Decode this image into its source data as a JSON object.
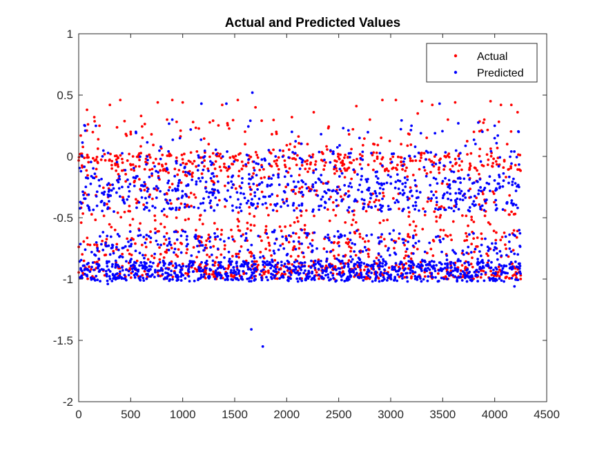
{
  "chart_data": {
    "type": "scatter",
    "title": "Actual and Predicted Values",
    "xlabel": "",
    "ylabel": "",
    "xlim": [
      0,
      4500
    ],
    "ylim": [
      -2,
      1
    ],
    "x_ticks": [
      0,
      500,
      1000,
      1500,
      2000,
      2500,
      3000,
      3500,
      4000,
      4500
    ],
    "x_tick_labels": [
      "0",
      "500",
      "1000",
      "1500",
      "2000",
      "2500",
      "3000",
      "3500",
      "4000",
      "4500"
    ],
    "y_ticks": [
      1,
      0.5,
      0,
      -0.5,
      -1,
      -1.5,
      -2
    ],
    "y_tick_labels": [
      "1",
      "0.5",
      "0",
      "-0.5",
      "-1",
      "-1.5",
      "-2"
    ],
    "grid": false,
    "legend_position": "top-right",
    "series": [
      {
        "name": "Actual",
        "color": "#ff0000",
        "points": [
          [
            20,
            0.17
          ],
          [
            40,
            -0.95
          ],
          [
            80,
            0.38
          ],
          [
            100,
            -0.9
          ],
          [
            150,
            0.32
          ],
          [
            200,
            0.25
          ],
          [
            250,
            -0.97
          ],
          [
            300,
            0.42
          ],
          [
            350,
            -0.6
          ],
          [
            400,
            0.46
          ],
          [
            450,
            -0.98
          ],
          [
            500,
            0.2
          ],
          [
            550,
            -0.35
          ],
          [
            600,
            0.33
          ],
          [
            650,
            -0.96
          ],
          [
            700,
            0.18
          ],
          [
            760,
            0.44
          ],
          [
            800,
            -0.97
          ],
          [
            850,
            0.3
          ],
          [
            900,
            0.46
          ],
          [
            940,
            -0.5
          ],
          [
            1000,
            0.44
          ],
          [
            1050,
            -0.97
          ],
          [
            1100,
            0.28
          ],
          [
            1180,
            -0.7
          ],
          [
            1250,
            0.1
          ],
          [
            1300,
            -0.96
          ],
          [
            1380,
            0.42
          ],
          [
            1430,
            0.27
          ],
          [
            1500,
            -0.97
          ],
          [
            1530,
            0.46
          ],
          [
            1600,
            0.1
          ],
          [
            1700,
            0.4
          ],
          [
            1800,
            -0.6
          ],
          [
            1900,
            0.2
          ],
          [
            1950,
            -0.97
          ],
          [
            2050,
            0.32
          ],
          [
            2100,
            -0.5
          ],
          [
            2200,
            0.1
          ],
          [
            2260,
            0.36
          ],
          [
            2300,
            -0.97
          ],
          [
            2400,
            0.23
          ],
          [
            2500,
            -0.7
          ],
          [
            2600,
            0.18
          ],
          [
            2670,
            0.41
          ],
          [
            2700,
            -0.96
          ],
          [
            2800,
            0.3
          ],
          [
            2920,
            0.46
          ],
          [
            3000,
            -0.97
          ],
          [
            3050,
            0.46
          ],
          [
            3100,
            0.1
          ],
          [
            3200,
            -0.98
          ],
          [
            3260,
            0.35
          ],
          [
            3300,
            0.45
          ],
          [
            3400,
            0.42
          ],
          [
            3480,
            -0.6
          ],
          [
            3550,
            0.3
          ],
          [
            3620,
            0.44
          ],
          [
            3700,
            -0.97
          ],
          [
            3800,
            0.2
          ],
          [
            3900,
            0.3
          ],
          [
            3960,
            0.45
          ],
          [
            4000,
            -0.97
          ],
          [
            4060,
            0.42
          ],
          [
            4120,
            0.1
          ],
          [
            4160,
            0.42
          ],
          [
            4220,
            0.36
          ],
          [
            4250,
            -0.97
          ]
        ],
        "bands": [
          {
            "x": [
              0,
              4250
            ],
            "y": [
              -1.0,
              -0.88
            ],
            "count": 340
          },
          {
            "x": [
              0,
              4250
            ],
            "y": [
              -0.88,
              -0.6
            ],
            "count": 300
          },
          {
            "x": [
              0,
              4250
            ],
            "y": [
              -0.6,
              -0.1
            ],
            "count": 320
          },
          {
            "x": [
              0,
              4250
            ],
            "y": [
              -0.12,
              0.03
            ],
            "count": 330
          },
          {
            "x": [
              0,
              4250
            ],
            "y": [
              0.03,
              0.3
            ],
            "count": 80
          }
        ]
      },
      {
        "name": "Predicted",
        "color": "#0000ff",
        "points": [
          [
            1670,
            0.52
          ],
          [
            1660,
            -1.41
          ],
          [
            1770,
            -1.55
          ],
          [
            4190,
            -1.06
          ],
          [
            280,
            -1.04
          ],
          [
            1180,
            0.43
          ],
          [
            1420,
            0.43
          ],
          [
            3470,
            0.43
          ],
          [
            3650,
            0.27
          ],
          [
            60,
            0.25
          ],
          [
            550,
            0.2
          ],
          [
            900,
            0.3
          ],
          [
            2050,
            0.2
          ],
          [
            2700,
            0.15
          ],
          [
            3200,
            0.25
          ],
          [
            4000,
            0.25
          ],
          [
            4230,
            0.2
          ]
        ],
        "bands": [
          {
            "x": [
              0,
              4250
            ],
            "y": [
              -1.02,
              -0.85
            ],
            "count": 900
          },
          {
            "x": [
              0,
              4250
            ],
            "y": [
              -0.85,
              -0.6
            ],
            "count": 280
          },
          {
            "x": [
              0,
              4250
            ],
            "y": [
              -0.45,
              -0.15
            ],
            "count": 540
          },
          {
            "x": [
              0,
              4250
            ],
            "y": [
              -0.15,
              0.05
            ],
            "count": 150
          },
          {
            "x": [
              0,
              4250
            ],
            "y": [
              0.05,
              0.3
            ],
            "count": 40
          }
        ]
      }
    ]
  }
}
